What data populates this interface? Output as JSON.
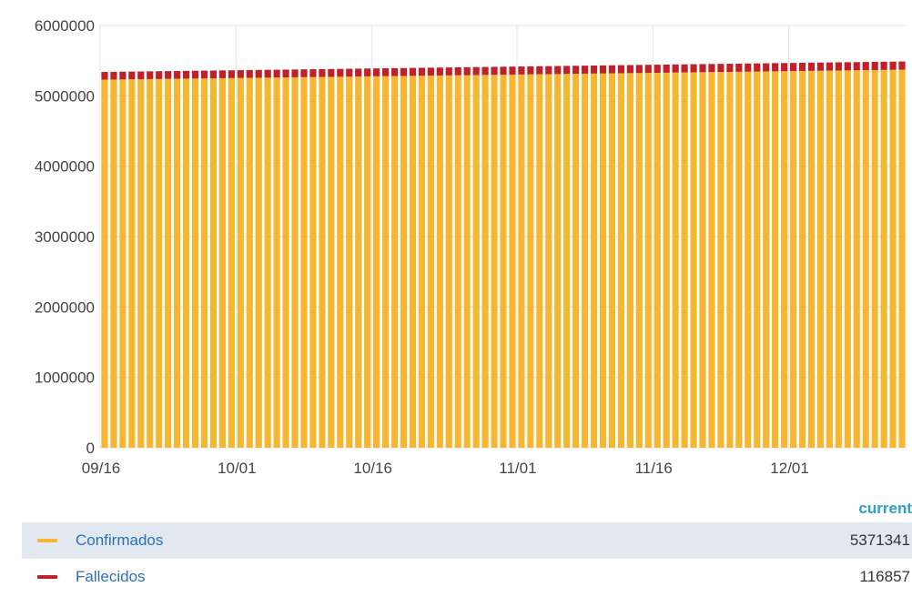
{
  "chart_data": {
    "type": "bar",
    "stacked": true,
    "x_start": "2020-09-16",
    "x_end": "2020-12-13",
    "x_tick_labels": [
      "09/16",
      "10/01",
      "10/16",
      "11/01",
      "11/16",
      "12/01"
    ],
    "x_tick_dates": [
      "2020-09-16",
      "2020-10-01",
      "2020-10-16",
      "2020-11-01",
      "2020-11-16",
      "2020-12-01"
    ],
    "y_ticks": [
      0,
      1000000,
      2000000,
      3000000,
      4000000,
      5000000,
      6000000
    ],
    "ylim": [
      0,
      6000000
    ],
    "grid": true,
    "legend_position": "bottom",
    "series": [
      {
        "name": "Confirmados",
        "color": "#f5b731",
        "start_value": 5230000,
        "end_value": 5371341
      },
      {
        "name": "Fallecidos",
        "color": "#c0202a",
        "start_value": 110000,
        "end_value": 116857
      }
    ]
  },
  "legend": {
    "header": "current",
    "rows": [
      {
        "name": "Confirmados",
        "value": "5371341",
        "color": "#f5b731"
      },
      {
        "name": "Fallecidos",
        "value": "116857",
        "color": "#c0202a"
      }
    ]
  }
}
